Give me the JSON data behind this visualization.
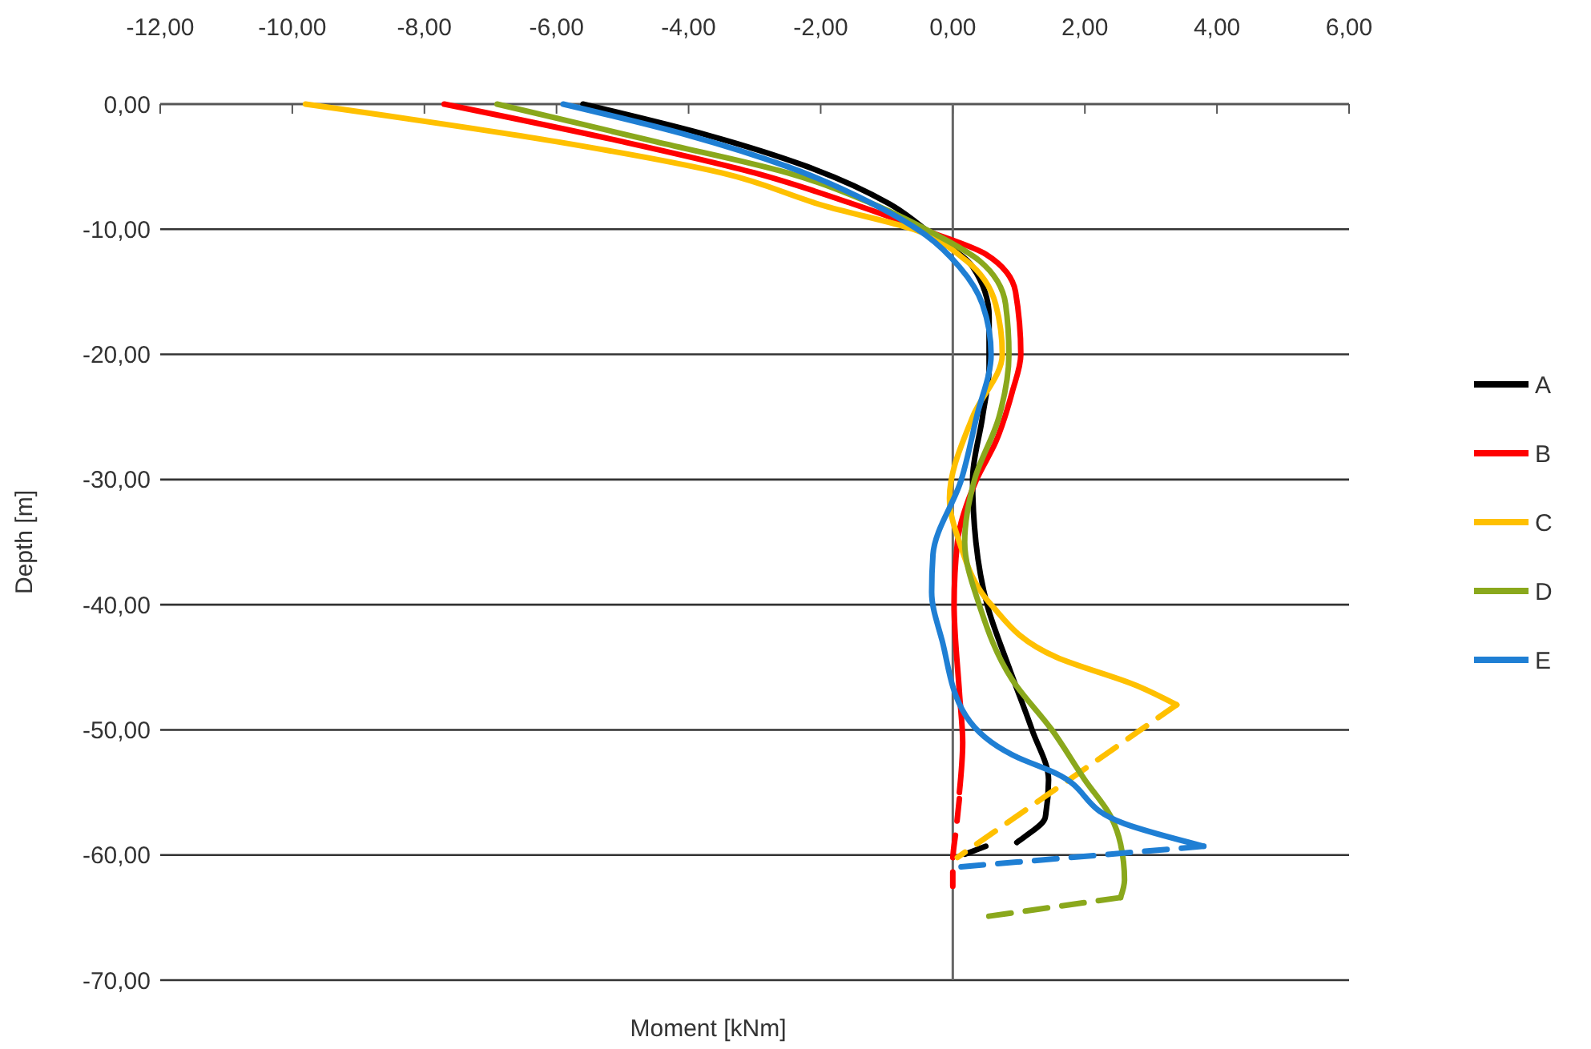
{
  "chart_data": {
    "type": "line",
    "xlabel": "Moment [kNm]",
    "ylabel": "Depth [m]",
    "xlim": [
      -12,
      6
    ],
    "ylim": [
      -70,
      0
    ],
    "xticks": [
      {
        "value": -12,
        "label": "-12,00"
      },
      {
        "value": -10,
        "label": "-10,00"
      },
      {
        "value": -8,
        "label": "-8,00"
      },
      {
        "value": -6,
        "label": "-6,00"
      },
      {
        "value": -4,
        "label": "-4,00"
      },
      {
        "value": -2,
        "label": "-2,00"
      },
      {
        "value": 0,
        "label": "0,00"
      },
      {
        "value": 2,
        "label": "2,00"
      },
      {
        "value": 4,
        "label": "4,00"
      },
      {
        "value": 6,
        "label": "6,00"
      }
    ],
    "yticks": [
      {
        "value": 0,
        "label": "0,00"
      },
      {
        "value": -10,
        "label": "-10,00"
      },
      {
        "value": -20,
        "label": "-20,00"
      },
      {
        "value": -30,
        "label": "-30,00"
      },
      {
        "value": -40,
        "label": "-40,00"
      },
      {
        "value": -50,
        "label": "-50,00"
      },
      {
        "value": -60,
        "label": "-60,00"
      },
      {
        "value": -70,
        "label": "-70,00"
      }
    ],
    "grid": "y",
    "legend": "right",
    "marker": "none",
    "line_style": "solid",
    "series": [
      {
        "name": "A",
        "color": "#000000",
        "x": [
          -5.6,
          -3.7,
          -2.2,
          -0.95,
          -0.3,
          0.3,
          0.55,
          0.55,
          0.45,
          0.3,
          0.35,
          0.52,
          0.85,
          1.2,
          1.45,
          1.4,
          1.1,
          0.97
        ],
        "values": [
          0,
          -2.5,
          -5,
          -8,
          -10.5,
          -13,
          -17,
          -21,
          -25,
          -30,
          -35,
          -40,
          -45,
          -50,
          -54,
          -57,
          -58.5,
          -59
        ]
      },
      {
        "color": "#000000",
        "line_style": "dashed",
        "x": [
          0.5,
          0
        ],
        "values": [
          -59.3,
          -60.3
        ]
      },
      {
        "name": "B",
        "color": "#ff0000",
        "x": [
          -7.7,
          -5,
          -3,
          -1.5,
          -0.3,
          0.5,
          0.95,
          1.03,
          0.9,
          0.65,
          0.36,
          0.07,
          0.02,
          0.1,
          0.15,
          0.1
        ],
        "values": [
          0,
          -3,
          -5.5,
          -8,
          -10.3,
          -12,
          -15,
          -20,
          -23,
          -27,
          -30,
          -35,
          -40,
          -47,
          -51,
          -55
        ]
      },
      {
        "color": "#ff0000",
        "line_style": "dashed",
        "x": [
          0.1,
          0.05,
          0,
          0
        ],
        "values": [
          -55.5,
          -58,
          -60.5,
          -62.5
        ]
      },
      {
        "name": "C",
        "color": "#ffc000",
        "x": [
          -9.8,
          -6,
          -3.5,
          -1.9,
          -0.6,
          0.2,
          0.65,
          0.75,
          0.3,
          -0.05,
          0.1,
          0.58,
          1.57,
          2.8,
          3.39
        ],
        "values": [
          0,
          -3,
          -5.5,
          -8.2,
          -10,
          -12.5,
          -16,
          -20,
          -25,
          -31.5,
          -35,
          -40,
          -44.2,
          -46.5,
          -48
        ]
      },
      {
        "color": "#ffc000",
        "line_style": "dashed",
        "x": [
          3.39,
          0.07
        ],
        "values": [
          -48,
          -60.2
        ]
      },
      {
        "name": "D",
        "color": "#8aa81c",
        "x": [
          -6.9,
          -4.5,
          -2.5,
          -1.2,
          -0.3,
          0.4,
          0.8,
          0.85,
          0.7,
          0.33,
          0.18,
          0.4,
          0.9,
          1.5,
          2.0,
          2.4,
          2.54,
          2.6,
          2.54
        ],
        "values": [
          0,
          -3,
          -5.5,
          -8,
          -10.3,
          -12.5,
          -16,
          -20,
          -25,
          -30,
          -35,
          -40,
          -46,
          -50,
          -54,
          -57,
          -59.1,
          -62,
          -63.4
        ]
      },
      {
        "color": "#8aa81c",
        "line_style": "dashed",
        "x": [
          2.54,
          0.4
        ],
        "values": [
          -63.4,
          -65
        ]
      },
      {
        "name": "E",
        "color": "#1f7fd4",
        "x": [
          -5.9,
          -4,
          -2.5,
          -1.2,
          -0.4,
          0.1,
          0.45,
          0.58,
          0.36,
          0.13,
          -0.3,
          -0.32,
          -0.16,
          0.2,
          0.9,
          1.57,
          2.6,
          3.8
        ],
        "values": [
          0,
          -2.5,
          -5,
          -8,
          -10.5,
          -13,
          -16,
          -20,
          -25,
          -30,
          -36,
          -39,
          -42.9,
          -48.9,
          -52,
          -53.5,
          -57.5,
          -59.3
        ]
      },
      {
        "color": "#1f7fd4",
        "line_style": "dashed",
        "x": [
          3.8,
          0
        ],
        "values": [
          -59.3,
          -61
        ]
      }
    ]
  }
}
